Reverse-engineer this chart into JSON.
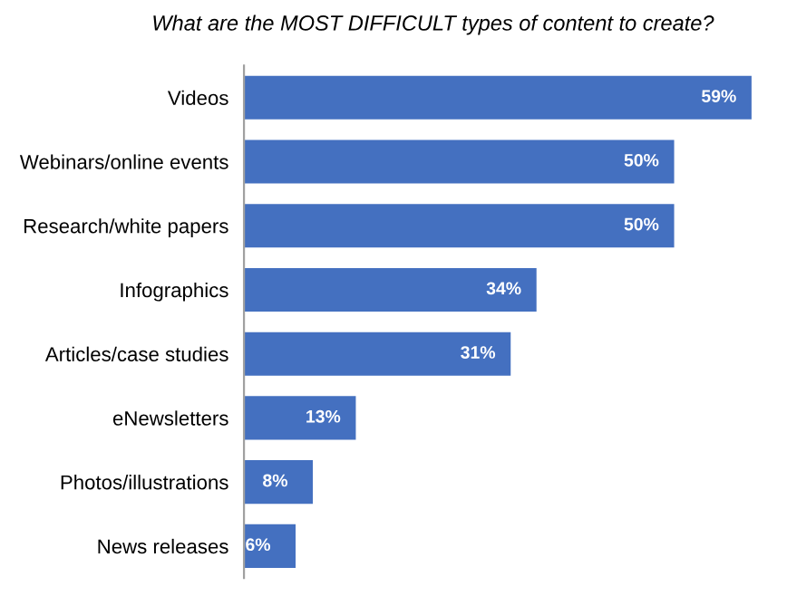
{
  "chart_data": {
    "type": "bar",
    "orientation": "horizontal",
    "title": "What are the MOST DIFFICULT types of content to create?",
    "categories": [
      "Videos",
      "Webinars/online events",
      "Research/white papers",
      "Infographics",
      "Articles/case studies",
      "eNewsletters",
      "Photos/illustrations",
      "News releases"
    ],
    "values": [
      59,
      50,
      50,
      34,
      31,
      13,
      8,
      6
    ],
    "value_labels": [
      "59%",
      "50%",
      "50%",
      "34%",
      "31%",
      "13%",
      "8%",
      "6%"
    ],
    "color": "#4470c0",
    "grid": false,
    "legend": false
  }
}
